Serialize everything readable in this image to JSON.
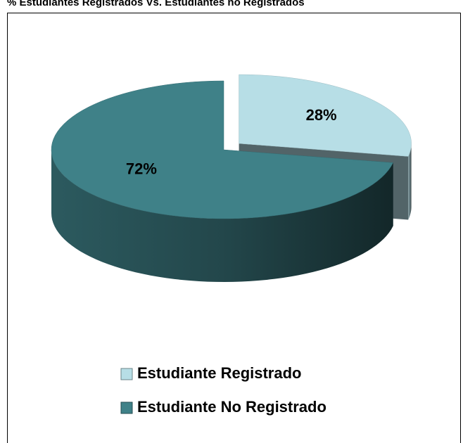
{
  "chart_data": {
    "type": "pie",
    "title": "% Estudiantes Registrados Vs. Estudiantes no Registrados",
    "categories": [
      "Estudiante Registrado",
      "Estudiante No Registrado"
    ],
    "values": [
      28,
      72
    ],
    "value_labels": [
      "28%",
      "72%"
    ],
    "colors": [
      "#b7dee6",
      "#3f8188"
    ],
    "legend": "bottom"
  }
}
